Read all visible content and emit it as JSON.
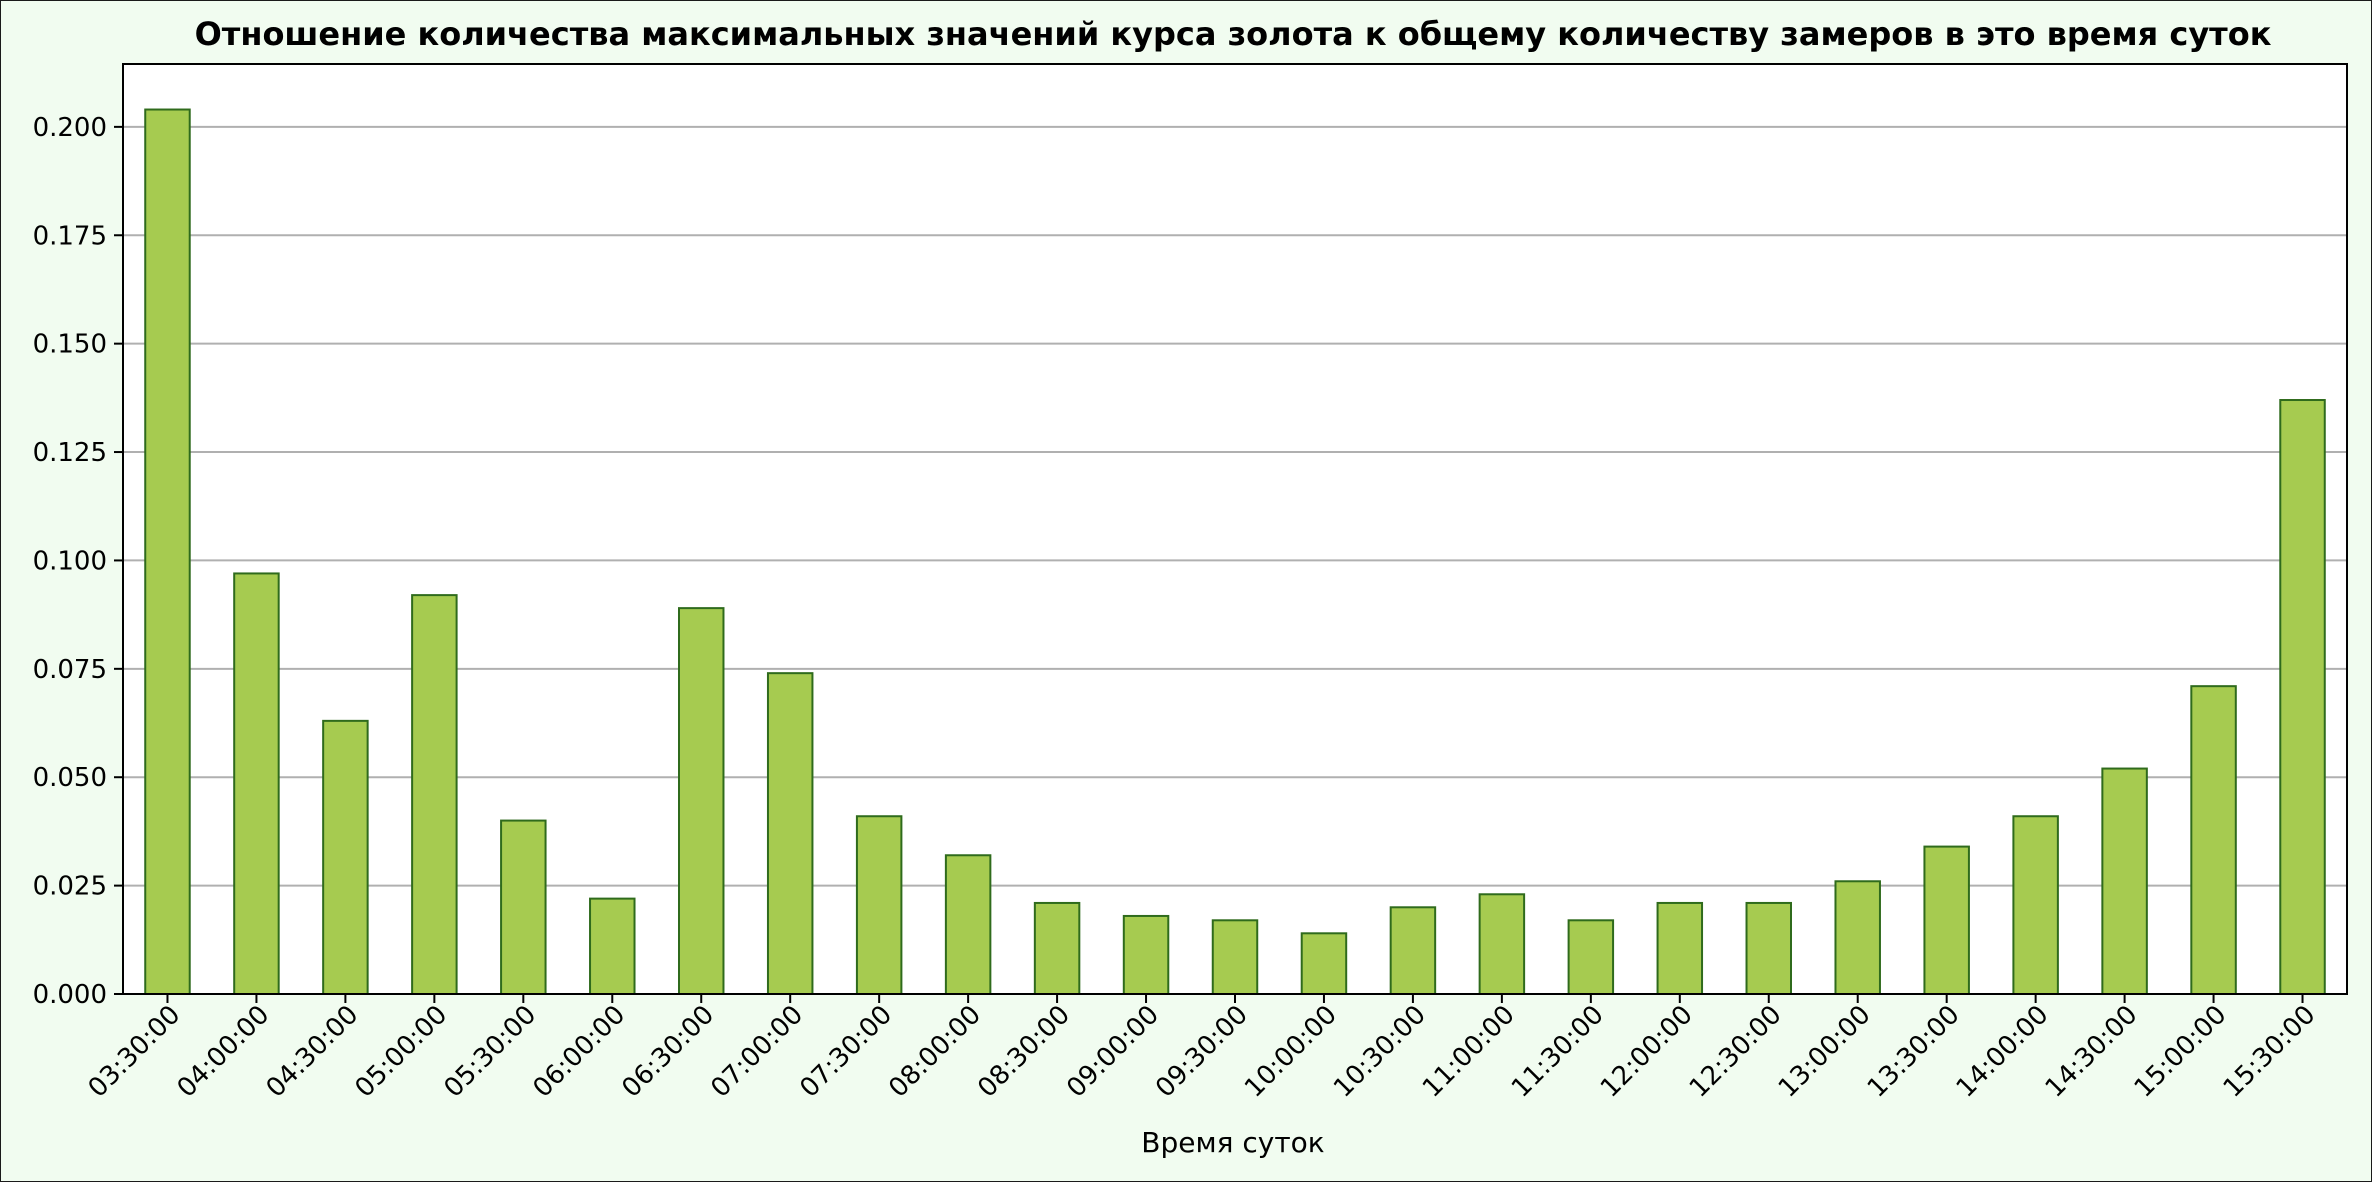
{
  "chart_data": {
    "type": "bar",
    "title": "Отношение количества максимальных значений курса золота к общему количеству замеров в это время суток",
    "xlabel": "Время суток",
    "ylabel": "",
    "categories": [
      "03:30:00",
      "04:00:00",
      "04:30:00",
      "05:00:00",
      "05:30:00",
      "06:00:00",
      "06:30:00",
      "07:00:00",
      "07:30:00",
      "08:00:00",
      "08:30:00",
      "09:00:00",
      "09:30:00",
      "10:00:00",
      "10:30:00",
      "11:00:00",
      "11:30:00",
      "12:00:00",
      "12:30:00",
      "13:00:00",
      "13:30:00",
      "14:00:00",
      "14:30:00",
      "15:00:00",
      "15:30:00"
    ],
    "values": [
      0.204,
      0.097,
      0.063,
      0.092,
      0.04,
      0.022,
      0.089,
      0.074,
      0.041,
      0.032,
      0.021,
      0.018,
      0.017,
      0.014,
      0.02,
      0.023,
      0.017,
      0.021,
      0.021,
      0.026,
      0.034,
      0.041,
      0.052,
      0.071,
      0.137
    ],
    "ylim": [
      0,
      0.2145
    ],
    "yticks": [
      "0.000",
      "0.025",
      "0.050",
      "0.075",
      "0.100",
      "0.125",
      "0.150",
      "0.175",
      "0.200"
    ],
    "grid": "horizontal",
    "colors": {
      "bar_fill": "#a6cb50",
      "bar_edge": "#2f6b1c",
      "grid": "#b0b0b0",
      "background": "#f1fcf0",
      "plot_background": "#ffffff"
    }
  }
}
